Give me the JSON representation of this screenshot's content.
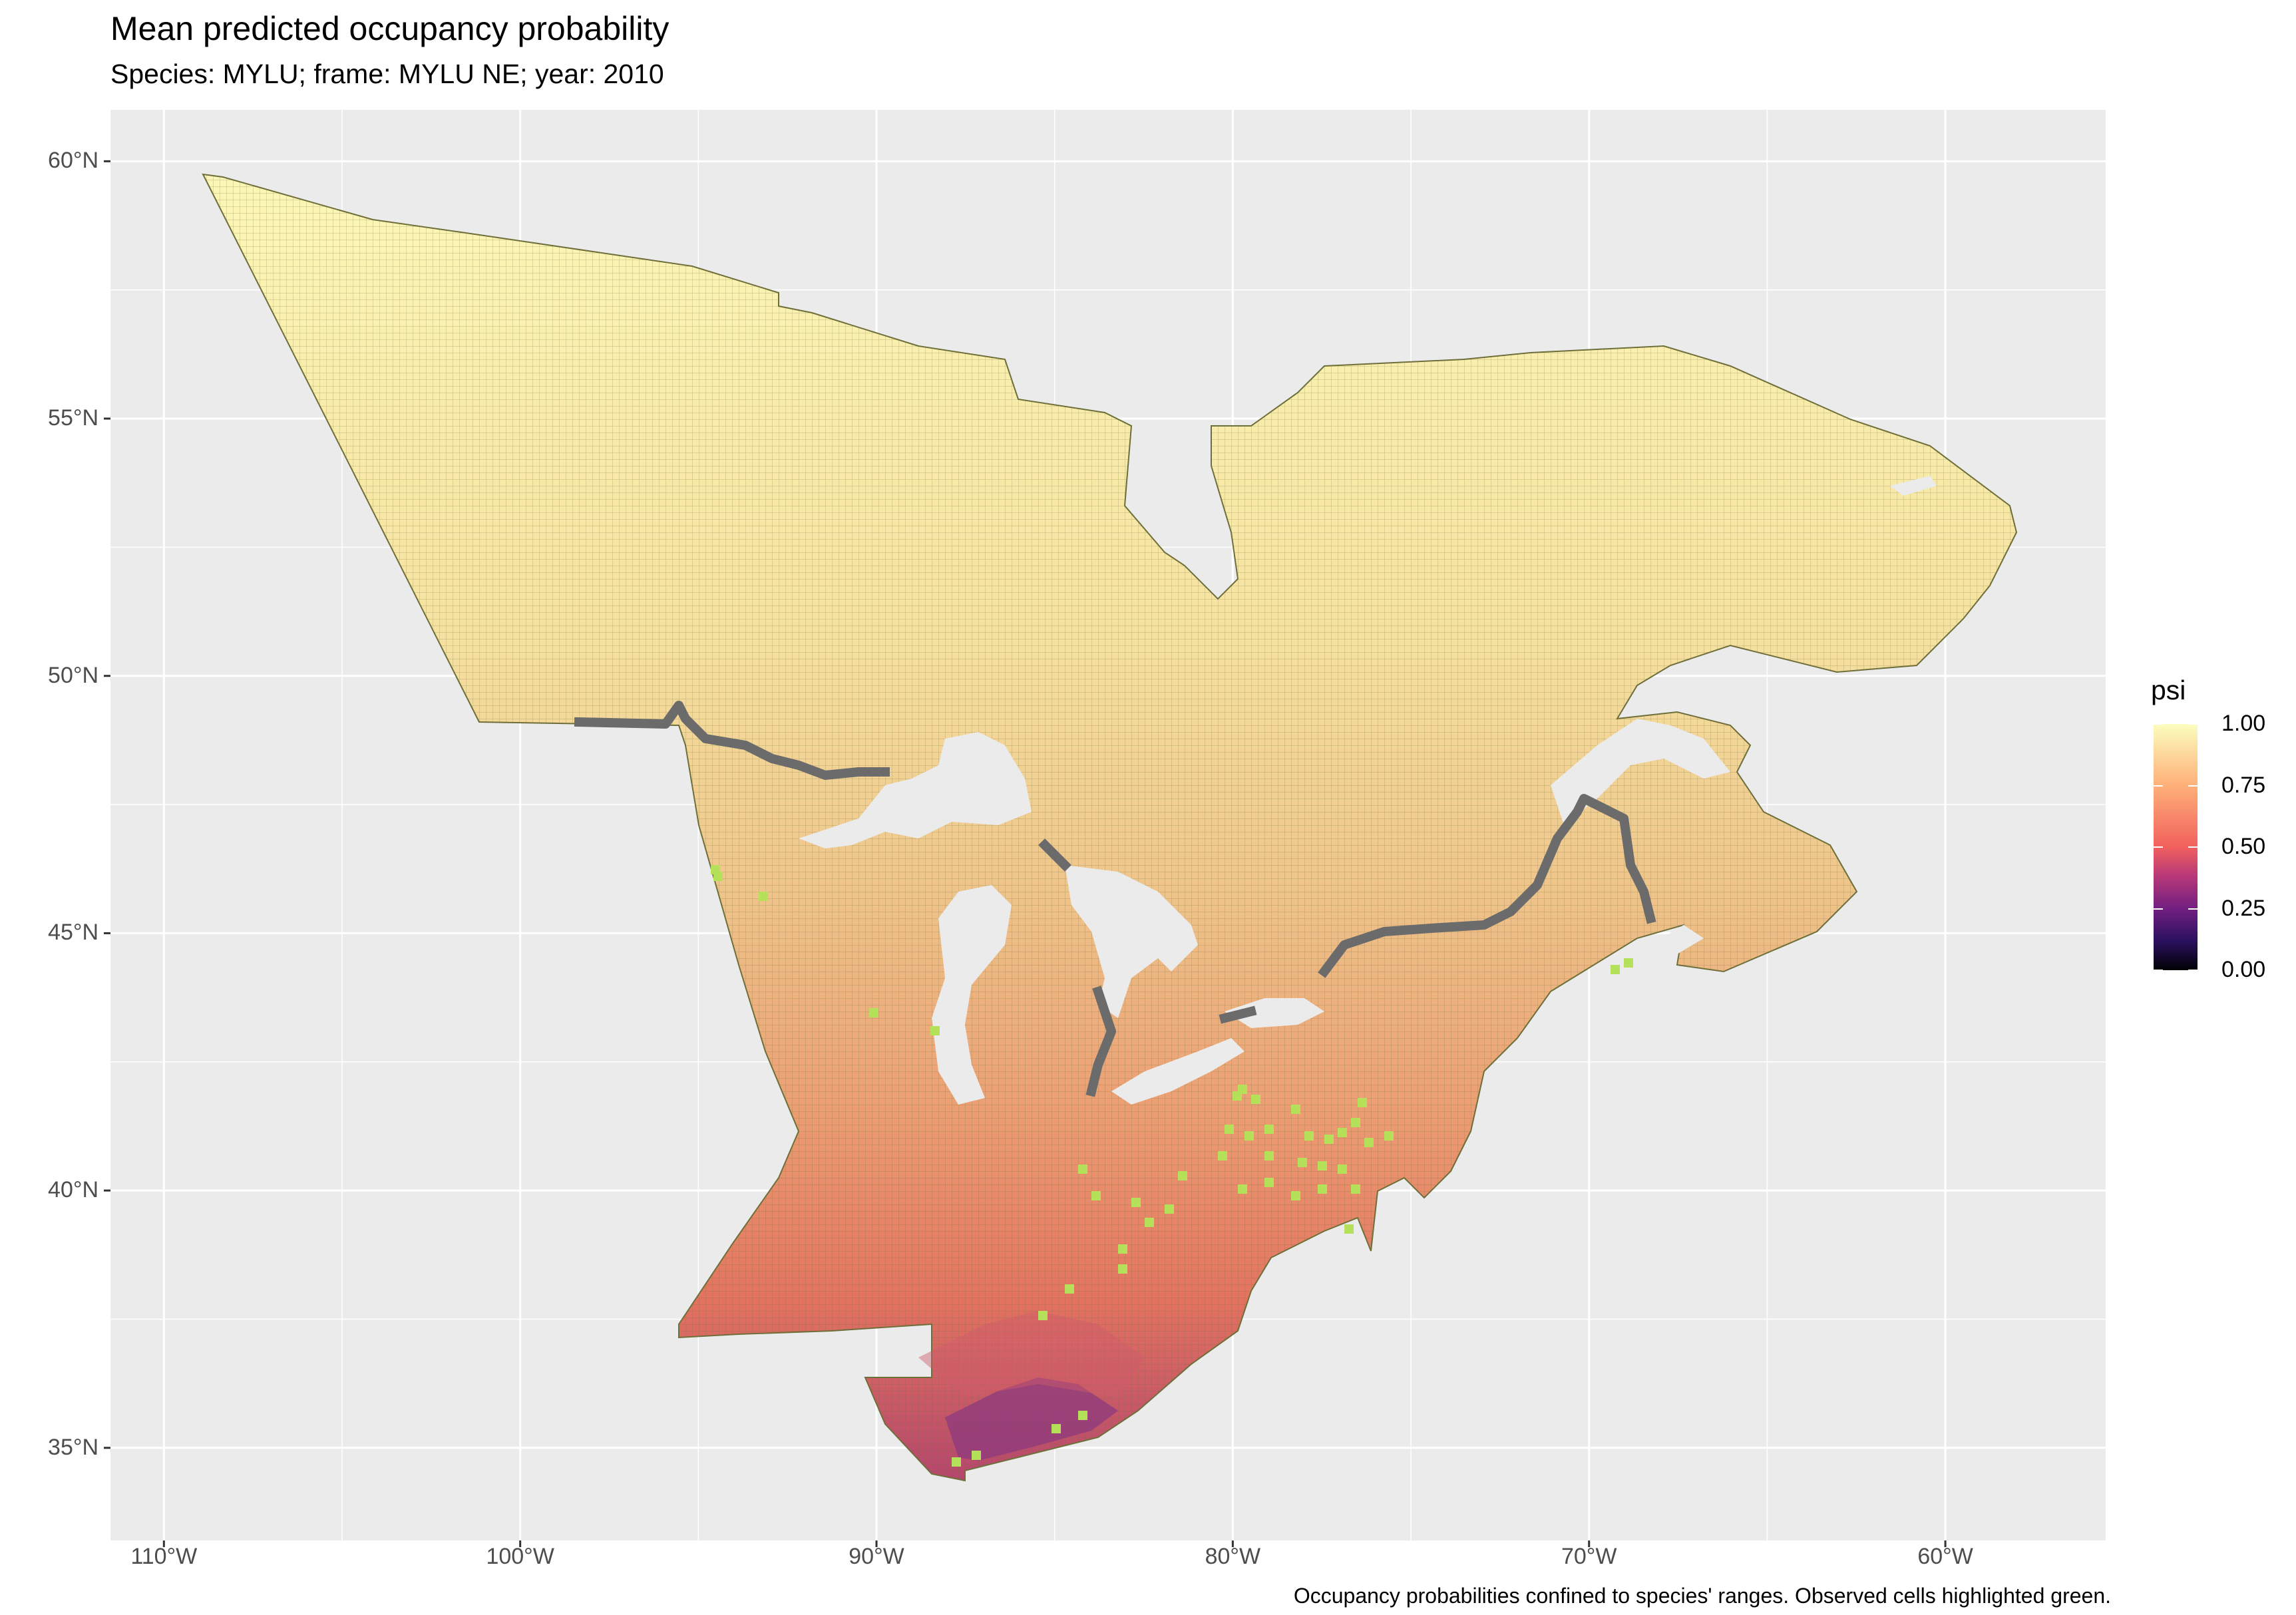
{
  "title": "Mean predicted occupancy probability",
  "subtitle": "Species: MYLU; frame: MYLU NE; year: 2010",
  "caption": "Occupancy probabilities confined to species' ranges. Observed cells highlighted green.",
  "colors": {
    "panel_background": "#ebebeb",
    "gridline": "#ffffff",
    "high_occupancy": "#fcf6b4",
    "mid_occupancy": "#f0a070",
    "low_occupancy": "#7a2a80",
    "observed_cells": "#b5e05a",
    "border_cells": "#6b6b6b",
    "cell_outline": "#6e6e3a"
  },
  "chart_data": {
    "type": "heatmap",
    "title": "Mean predicted occupancy probability",
    "subtitle": "Species: MYLU; frame: MYLU NE; year: 2010",
    "xlim": [
      -111.5,
      -55.5
    ],
    "ylim": [
      33.2,
      61.0
    ],
    "x_ticks": [
      {
        "value": -110,
        "label": "110°W"
      },
      {
        "value": -100,
        "label": "100°W"
      },
      {
        "value": -90,
        "label": "90°W"
      },
      {
        "value": -80,
        "label": "80°W"
      },
      {
        "value": -70,
        "label": "70°W"
      },
      {
        "value": -60,
        "label": "60°W"
      }
    ],
    "y_ticks": [
      {
        "value": 60,
        "label": "60°N"
      },
      {
        "value": 55,
        "label": "55°N"
      },
      {
        "value": 50,
        "label": "50°N"
      },
      {
        "value": 45,
        "label": "45°N"
      },
      {
        "value": 40,
        "label": "40°N"
      },
      {
        "value": 35,
        "label": "35°N"
      }
    ],
    "grid": true,
    "legend": {
      "title": "psi",
      "position": "right",
      "range": [
        0.0,
        1.0
      ],
      "labels": [
        "1.00",
        "0.75",
        "0.50",
        "0.25",
        "0.00"
      ],
      "palette": "magma"
    }
  }
}
